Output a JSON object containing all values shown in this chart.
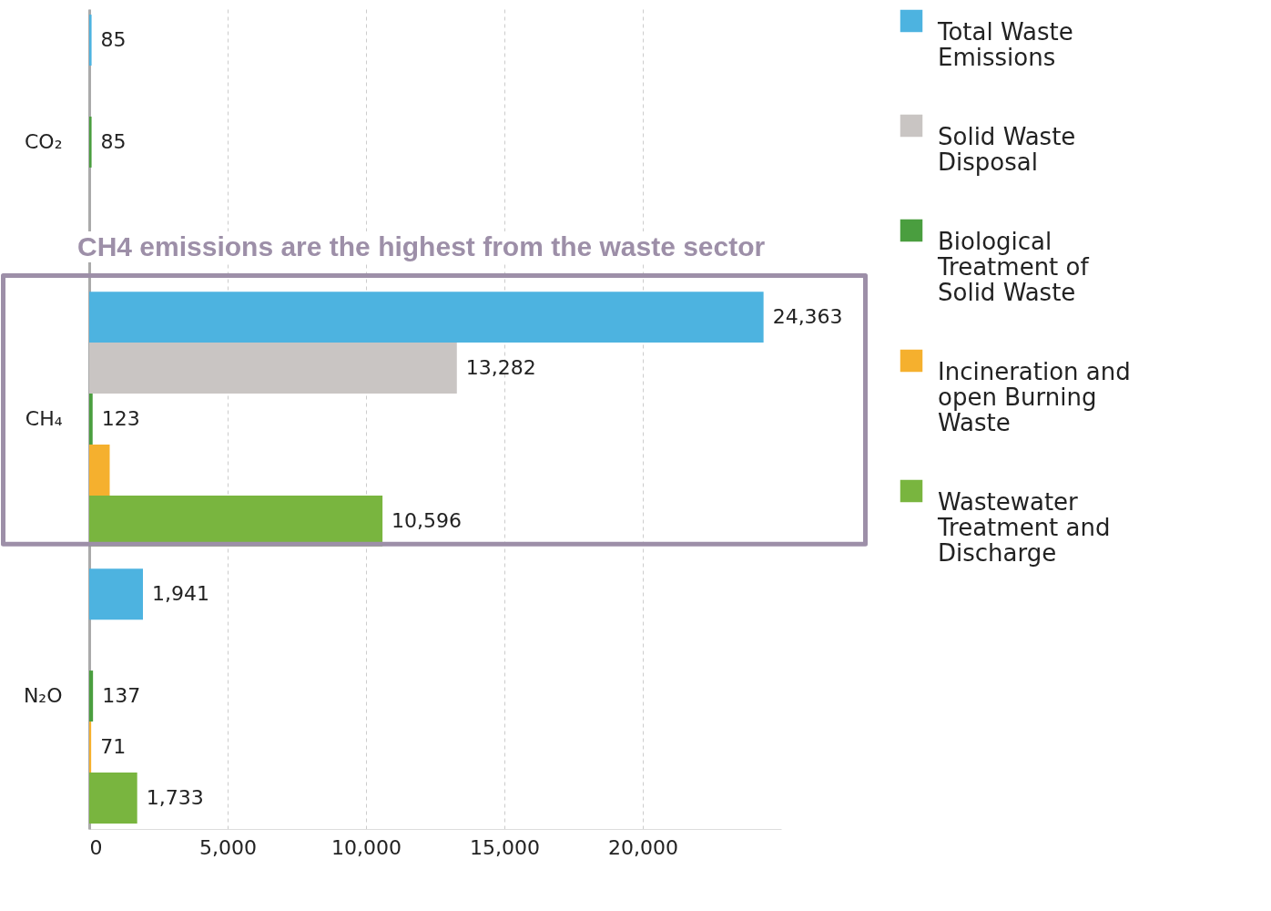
{
  "chart_data": {
    "type": "bar",
    "orientation": "horizontal",
    "categories": [
      "CO₂",
      "CH₄",
      "N₂O"
    ],
    "series": [
      {
        "name": "Total Waste Emissions",
        "color": "#4db3e0",
        "values": [
          85,
          24363,
          1941
        ],
        "value_labels": [
          "85",
          "24,363",
          "1,941"
        ]
      },
      {
        "name": "Solid Waste Disposal",
        "color": "#c9c5c3",
        "values": [
          null,
          13282,
          null
        ],
        "value_labels": [
          null,
          "13,282",
          null
        ]
      },
      {
        "name": "Biological Treatment of Solid Waste",
        "color": "#4a9e3f",
        "values": [
          85,
          123,
          137
        ],
        "value_labels": [
          "85",
          "123",
          "137"
        ]
      },
      {
        "name": "Incineration and open Burning Waste",
        "color": "#f5b02e",
        "values": [
          null,
          740,
          71
        ],
        "value_labels": [
          null,
          null,
          "71"
        ]
      },
      {
        "name": "Wastewater Treatment and Discharge",
        "color": "#79b53f",
        "values": [
          null,
          10596,
          1733
        ],
        "value_labels": [
          null,
          "10,596",
          "1,733"
        ]
      }
    ],
    "xlim": [
      0,
      25000
    ],
    "xticks": [
      0,
      {
        "value": 5000,
        "label": "5,000"
      },
      {
        "value": 10000,
        "label": "10,000"
      },
      {
        "value": 15000,
        "label": "15,000"
      },
      {
        "value": 20000,
        "label": "20,000"
      }
    ],
    "grid": "x",
    "legend": "right",
    "annotations": [
      "CH4 emissions are the highest from the waste sector"
    ]
  }
}
